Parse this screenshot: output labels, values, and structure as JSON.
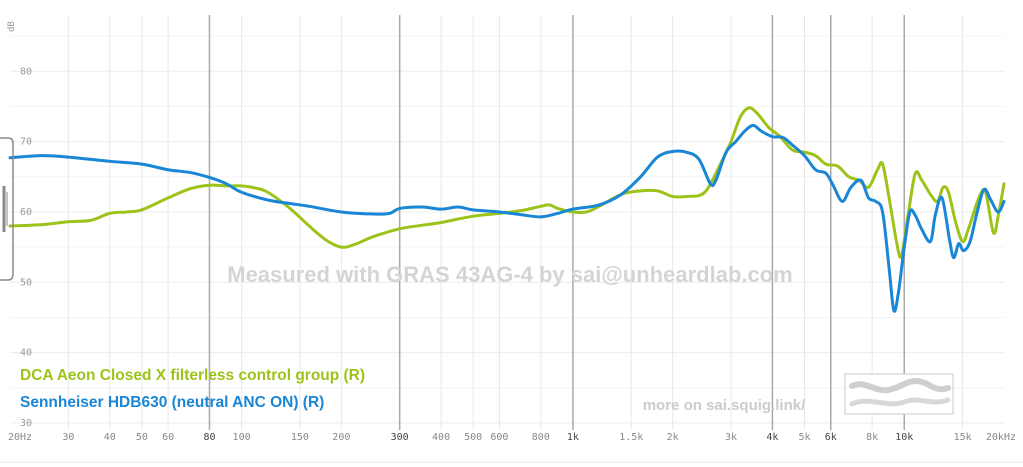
{
  "chart_data": {
    "type": "line",
    "title": "",
    "xlabel": "",
    "ylabel": "dB",
    "x_scale": "log",
    "xlim": [
      20,
      20000
    ],
    "ylim": [
      29,
      88
    ],
    "y_ticks": [
      30,
      40,
      50,
      60,
      70,
      80
    ],
    "x_ticks": [
      {
        "value": 20,
        "label": "20Hz",
        "major": false
      },
      {
        "value": 30,
        "label": "30",
        "major": false
      },
      {
        "value": 40,
        "label": "40",
        "major": false
      },
      {
        "value": 50,
        "label": "50",
        "major": false
      },
      {
        "value": 60,
        "label": "60",
        "major": false
      },
      {
        "value": 80,
        "label": "80",
        "major": true
      },
      {
        "value": 100,
        "label": "100",
        "major": false
      },
      {
        "value": 150,
        "label": "150",
        "major": false
      },
      {
        "value": 200,
        "label": "200",
        "major": false
      },
      {
        "value": 300,
        "label": "300",
        "major": true
      },
      {
        "value": 400,
        "label": "400",
        "major": false
      },
      {
        "value": 500,
        "label": "500",
        "major": false
      },
      {
        "value": 600,
        "label": "600",
        "major": false
      },
      {
        "value": 800,
        "label": "800",
        "major": false
      },
      {
        "value": 1000,
        "label": "1k",
        "major": true
      },
      {
        "value": 1500,
        "label": "1.5k",
        "major": false
      },
      {
        "value": 2000,
        "label": "2k",
        "major": false
      },
      {
        "value": 3000,
        "label": "3k",
        "major": false
      },
      {
        "value": 4000,
        "label": "4k",
        "major": true
      },
      {
        "value": 5000,
        "label": "5k",
        "major": false
      },
      {
        "value": 6000,
        "label": "6k",
        "major": true
      },
      {
        "value": 8000,
        "label": "8k",
        "major": false
      },
      {
        "value": 10000,
        "label": "10k",
        "major": true
      },
      {
        "value": 15000,
        "label": "15k",
        "major": false
      },
      {
        "value": 20000,
        "label": "20kHz",
        "major": false
      }
    ],
    "grid": true,
    "legend_position": "bottom-left",
    "watermark": "Measured with GRAS 43AG-4 by sai@unheardlab.com",
    "credit": "more on sai.squig.link/",
    "series": [
      {
        "name": "DCA Aeon Closed X filterless control group (R)",
        "color": "#9dc31a",
        "points": [
          [
            20,
            58.0
          ],
          [
            25,
            58.2
          ],
          [
            30,
            58.6
          ],
          [
            35,
            58.8
          ],
          [
            40,
            59.8
          ],
          [
            45,
            60.0
          ],
          [
            50,
            60.3
          ],
          [
            60,
            62.0
          ],
          [
            70,
            63.3
          ],
          [
            80,
            63.8
          ],
          [
            90,
            63.7
          ],
          [
            100,
            63.7
          ],
          [
            110,
            63.4
          ],
          [
            120,
            62.8
          ],
          [
            140,
            60.5
          ],
          [
            160,
            58.0
          ],
          [
            180,
            56.0
          ],
          [
            200,
            55.0
          ],
          [
            220,
            55.4
          ],
          [
            250,
            56.5
          ],
          [
            300,
            57.6
          ],
          [
            350,
            58.1
          ],
          [
            400,
            58.5
          ],
          [
            500,
            59.4
          ],
          [
            600,
            59.8
          ],
          [
            700,
            60.2
          ],
          [
            800,
            60.8
          ],
          [
            850,
            61.0
          ],
          [
            900,
            60.5
          ],
          [
            1000,
            60.0
          ],
          [
            1100,
            60.0
          ],
          [
            1200,
            60.8
          ],
          [
            1400,
            62.5
          ],
          [
            1600,
            63.0
          ],
          [
            1800,
            63.0
          ],
          [
            2000,
            62.2
          ],
          [
            2200,
            62.2
          ],
          [
            2500,
            62.8
          ],
          [
            2800,
            67.0
          ],
          [
            3000,
            70.0
          ],
          [
            3200,
            73.5
          ],
          [
            3400,
            74.8
          ],
          [
            3600,
            74.0
          ],
          [
            3900,
            72.0
          ],
          [
            4200,
            70.8
          ],
          [
            4600,
            68.8
          ],
          [
            5000,
            68.5
          ],
          [
            5400,
            68.0
          ],
          [
            5800,
            66.8
          ],
          [
            6300,
            66.5
          ],
          [
            6800,
            65.0
          ],
          [
            7300,
            64.5
          ],
          [
            7800,
            63.5
          ],
          [
            8300,
            66.0
          ],
          [
            8600,
            66.8
          ],
          [
            9000,
            62.0
          ],
          [
            9500,
            55.5
          ],
          [
            9800,
            53.8
          ],
          [
            10300,
            60.0
          ],
          [
            10800,
            65.5
          ],
          [
            11300,
            64.5
          ],
          [
            12000,
            62.5
          ],
          [
            12600,
            61.5
          ],
          [
            13100,
            63.5
          ],
          [
            13600,
            62.8
          ],
          [
            14300,
            58.5
          ],
          [
            15000,
            55.8
          ],
          [
            15600,
            57.5
          ],
          [
            16800,
            62.0
          ],
          [
            17600,
            62.8
          ],
          [
            18600,
            57.0
          ],
          [
            19300,
            60.0
          ],
          [
            20000,
            64.0
          ]
        ]
      },
      {
        "name": "Sennheiser HDB630 (neutral ANC ON) (R)",
        "color": "#1a86d6",
        "points": [
          [
            20,
            67.7
          ],
          [
            25,
            68.0
          ],
          [
            30,
            67.8
          ],
          [
            40,
            67.2
          ],
          [
            50,
            66.8
          ],
          [
            60,
            66.0
          ],
          [
            70,
            65.6
          ],
          [
            80,
            64.9
          ],
          [
            90,
            64.0
          ],
          [
            100,
            62.8
          ],
          [
            120,
            61.7
          ],
          [
            140,
            61.2
          ],
          [
            160,
            60.8
          ],
          [
            200,
            60.0
          ],
          [
            250,
            59.7
          ],
          [
            280,
            59.8
          ],
          [
            300,
            60.5
          ],
          [
            350,
            60.7
          ],
          [
            400,
            60.4
          ],
          [
            450,
            60.7
          ],
          [
            500,
            60.3
          ],
          [
            600,
            60.0
          ],
          [
            700,
            59.6
          ],
          [
            800,
            59.3
          ],
          [
            900,
            59.8
          ],
          [
            1000,
            60.4
          ],
          [
            1200,
            61.0
          ],
          [
            1400,
            62.5
          ],
          [
            1600,
            65.0
          ],
          [
            1800,
            67.8
          ],
          [
            2000,
            68.6
          ],
          [
            2200,
            68.5
          ],
          [
            2400,
            67.5
          ],
          [
            2600,
            64.0
          ],
          [
            2700,
            64.5
          ],
          [
            2900,
            68.5
          ],
          [
            3100,
            70.0
          ],
          [
            3300,
            71.5
          ],
          [
            3500,
            72.3
          ],
          [
            3700,
            71.5
          ],
          [
            4000,
            70.7
          ],
          [
            4300,
            70.6
          ],
          [
            4600,
            69.5
          ],
          [
            5000,
            68.0
          ],
          [
            5400,
            66.0
          ],
          [
            5800,
            65.5
          ],
          [
            6100,
            63.8
          ],
          [
            6500,
            61.5
          ],
          [
            6900,
            63.5
          ],
          [
            7400,
            64.5
          ],
          [
            7800,
            62.0
          ],
          [
            8200,
            61.5
          ],
          [
            8600,
            60.0
          ],
          [
            9000,
            52.0
          ],
          [
            9300,
            46.0
          ],
          [
            9600,
            48.5
          ],
          [
            10000,
            55.0
          ],
          [
            10400,
            60.0
          ],
          [
            10800,
            59.5
          ],
          [
            11300,
            57.5
          ],
          [
            12000,
            55.8
          ],
          [
            12400,
            59.5
          ],
          [
            13000,
            62.0
          ],
          [
            13700,
            56.0
          ],
          [
            14100,
            53.5
          ],
          [
            14600,
            55.5
          ],
          [
            15100,
            54.5
          ],
          [
            15800,
            55.8
          ],
          [
            16600,
            60.0
          ],
          [
            17400,
            63.2
          ],
          [
            18200,
            61.8
          ],
          [
            19200,
            60.0
          ],
          [
            20000,
            61.5
          ]
        ]
      }
    ]
  }
}
